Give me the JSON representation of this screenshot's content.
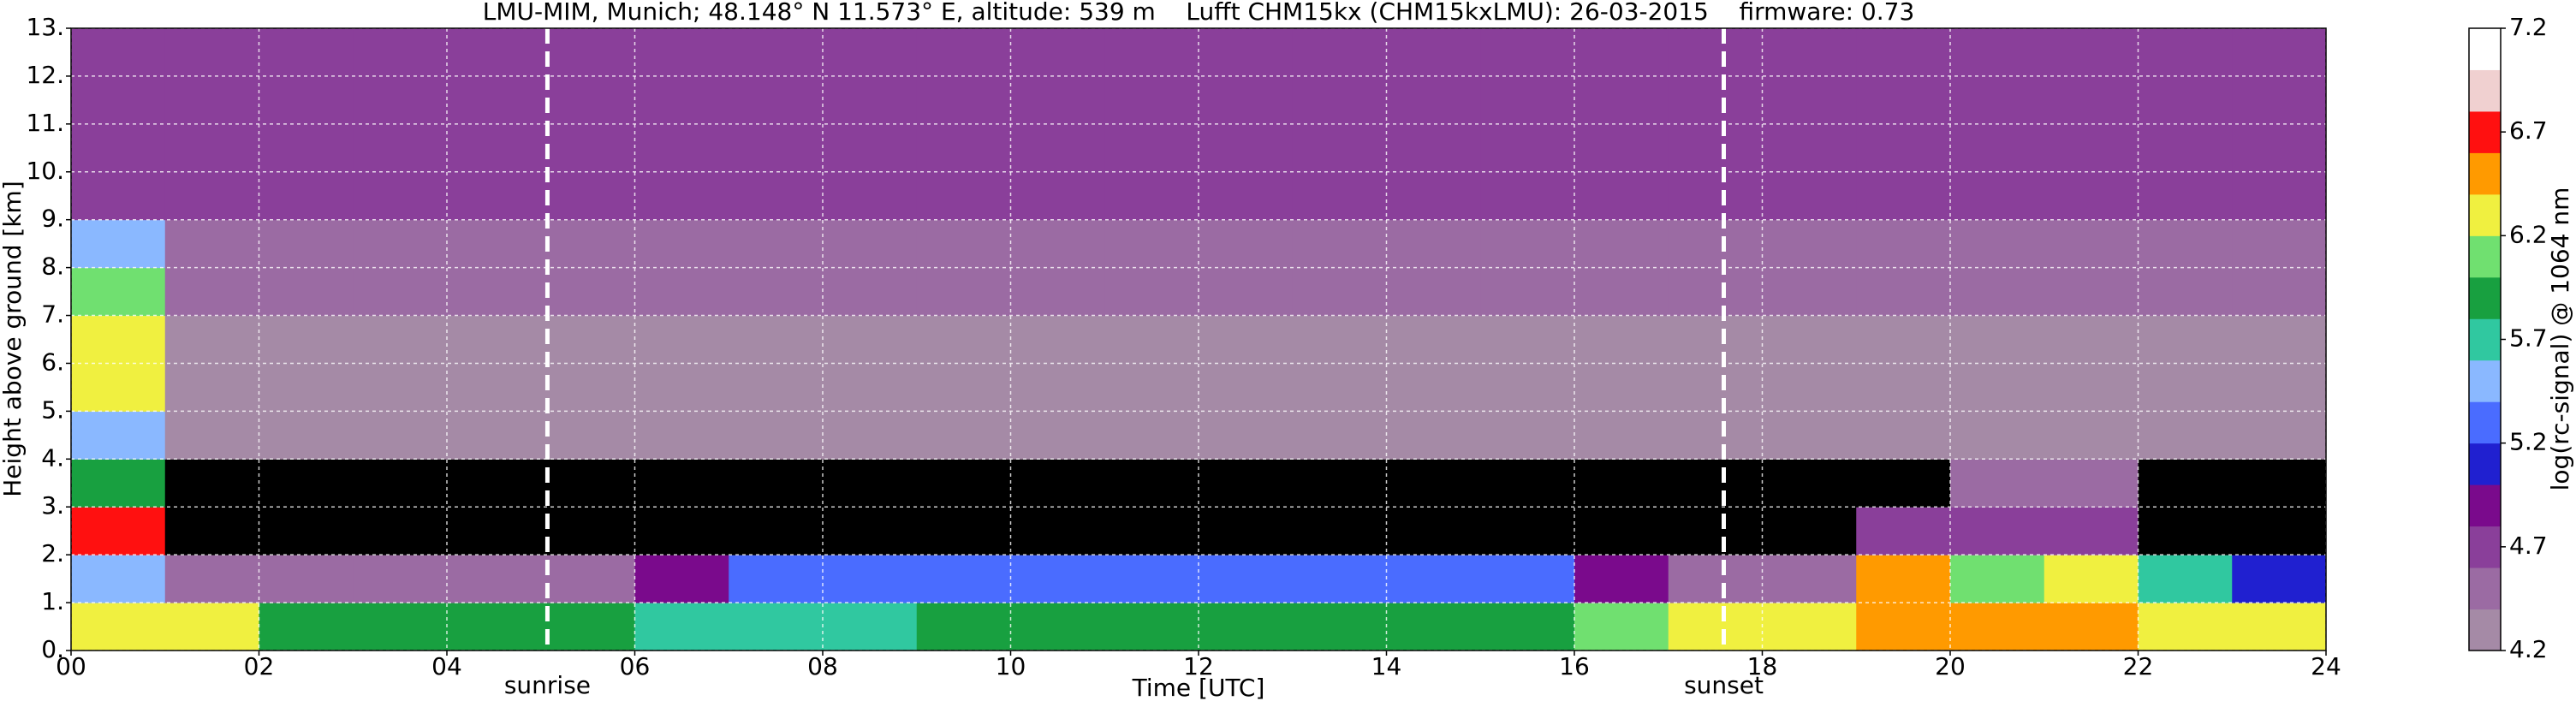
{
  "chart_data": {
    "type": "heatmap",
    "title": "LMU-MIM, Munich; 48.148° N 11.573° E, altitude: 539 m    Lufft CHM15kx (CHM15kxLMU): 26-03-2015    firmware: 0.73",
    "x_label": "Time [UTC]",
    "y_label": "Height above ground [km]",
    "colorbar_label": "log(rc-signal) @ 1064 nm",
    "xlim": [
      0,
      24
    ],
    "ylim": [
      0,
      13
    ],
    "zlim": [
      4.2,
      7.2
    ],
    "xticks": [
      {
        "value": 0,
        "label": "00"
      },
      {
        "value": 2,
        "label": "02"
      },
      {
        "value": 4,
        "label": "04"
      },
      {
        "value": 6,
        "label": "06"
      },
      {
        "value": 8,
        "label": "08"
      },
      {
        "value": 10,
        "label": "10"
      },
      {
        "value": 12,
        "label": "12"
      },
      {
        "value": 14,
        "label": "14"
      },
      {
        "value": 16,
        "label": "16"
      },
      {
        "value": 18,
        "label": "18"
      },
      {
        "value": 20,
        "label": "20"
      },
      {
        "value": 22,
        "label": "22"
      },
      {
        "value": 24,
        "label": "24"
      }
    ],
    "yticks": [
      {
        "value": 0,
        "label": "0."
      },
      {
        "value": 1,
        "label": "1."
      },
      {
        "value": 2,
        "label": "2."
      },
      {
        "value": 3,
        "label": "3."
      },
      {
        "value": 4,
        "label": "4."
      },
      {
        "value": 5,
        "label": "5."
      },
      {
        "value": 6,
        "label": "6."
      },
      {
        "value": 7,
        "label": "7."
      },
      {
        "value": 8,
        "label": "8."
      },
      {
        "value": 9,
        "label": "9."
      },
      {
        "value": 10,
        "label": "10."
      },
      {
        "value": 11,
        "label": "11."
      },
      {
        "value": 12,
        "label": "12."
      },
      {
        "value": 13,
        "label": "13."
      }
    ],
    "zticks": [
      4.2,
      4.7,
      5.2,
      5.7,
      6.2,
      6.7,
      7.2
    ],
    "grid": true,
    "colorscale": [
      "#a58aa6",
      "#9b6ba3",
      "#8a3f9a",
      "#7a0a8c",
      "#2020d0",
      "#4a6cff",
      "#8ab8ff",
      "#30c8a0",
      "#18a040",
      "#70e070",
      "#f0f040",
      "#ff9a00",
      "#ff1010",
      "#f0d0d0",
      "#ffffff"
    ],
    "under_color": "#000000",
    "annotations": [
      {
        "text": "sunrise",
        "x": 5.07
      },
      {
        "text": "sunset",
        "x": 17.59
      }
    ],
    "z": [
      [
        6.4,
        6.3,
        6.0,
        6.0,
        6.0,
        5.9,
        5.7,
        5.6,
        5.6,
        5.9,
        6.0,
        6.0,
        6.0,
        6.0,
        6.0,
        6.0,
        6.1,
        6.3,
        6.4,
        6.6,
        6.6,
        6.5,
        6.4,
        6.3
      ],
      [
        5.4,
        4.4,
        4.4,
        4.4,
        4.4,
        4.4,
        4.9,
        5.3,
        5.3,
        5.3,
        5.3,
        5.3,
        5.3,
        5.3,
        5.3,
        5.3,
        4.9,
        4.4,
        4.4,
        6.6,
        6.2,
        6.4,
        5.6,
        5.0
      ],
      [
        6.7,
        4.0,
        4.0,
        4.0,
        4.0,
        4.0,
        4.0,
        4.0,
        4.0,
        4.0,
        4.0,
        4.0,
        4.0,
        4.0,
        4.0,
        4.0,
        4.0,
        4.0,
        4.0,
        4.6,
        4.6,
        4.6,
        4.0,
        4.0
      ],
      [
        6.0,
        4.1,
        4.1,
        4.1,
        4.1,
        4.1,
        4.1,
        4.1,
        4.1,
        4.1,
        4.1,
        4.1,
        4.1,
        4.1,
        4.1,
        4.1,
        4.1,
        4.1,
        4.1,
        4.1,
        4.5,
        4.5,
        4.1,
        4.1
      ],
      [
        5.5,
        4.2,
        4.2,
        4.2,
        4.2,
        4.2,
        4.2,
        4.2,
        4.2,
        4.2,
        4.2,
        4.2,
        4.2,
        4.2,
        4.2,
        4.2,
        4.2,
        4.2,
        4.2,
        4.2,
        4.2,
        4.2,
        4.2,
        4.2
      ],
      [
        6.3,
        4.3,
        4.3,
        4.3,
        4.3,
        4.3,
        4.3,
        4.3,
        4.3,
        4.3,
        4.3,
        4.3,
        4.3,
        4.3,
        4.3,
        4.3,
        4.3,
        4.3,
        4.3,
        4.3,
        4.3,
        4.3,
        4.3,
        4.3
      ],
      [
        6.3,
        4.3,
        4.3,
        4.3,
        4.3,
        4.3,
        4.3,
        4.3,
        4.3,
        4.3,
        4.3,
        4.3,
        4.3,
        4.3,
        4.3,
        4.3,
        4.3,
        4.3,
        4.3,
        4.3,
        4.3,
        4.3,
        4.3,
        4.3
      ],
      [
        6.1,
        4.4,
        4.4,
        4.4,
        4.4,
        4.4,
        4.4,
        4.4,
        4.4,
        4.4,
        4.4,
        4.4,
        4.4,
        4.4,
        4.4,
        4.4,
        4.4,
        4.4,
        4.4,
        4.4,
        4.4,
        4.4,
        4.4,
        4.4
      ],
      [
        5.4,
        4.5,
        4.5,
        4.5,
        4.5,
        4.5,
        4.5,
        4.5,
        4.5,
        4.5,
        4.5,
        4.5,
        4.5,
        4.5,
        4.5,
        4.5,
        4.5,
        4.5,
        4.5,
        4.5,
        4.5,
        4.5,
        4.5,
        4.5
      ],
      [
        4.6,
        4.6,
        4.6,
        4.6,
        4.6,
        4.6,
        4.6,
        4.6,
        4.6,
        4.6,
        4.6,
        4.6,
        4.6,
        4.6,
        4.6,
        4.6,
        4.6,
        4.6,
        4.6,
        4.6,
        4.6,
        4.6,
        4.6,
        4.6
      ],
      [
        4.7,
        4.7,
        4.7,
        4.7,
        4.7,
        4.7,
        4.7,
        4.7,
        4.7,
        4.7,
        4.7,
        4.7,
        4.7,
        4.7,
        4.7,
        4.7,
        4.7,
        4.7,
        4.7,
        4.7,
        4.7,
        4.7,
        4.7,
        4.7
      ],
      [
        4.7,
        4.7,
        4.7,
        4.7,
        4.7,
        4.7,
        4.7,
        4.7,
        4.7,
        4.7,
        4.7,
        4.7,
        4.7,
        4.7,
        4.7,
        4.7,
        4.7,
        4.7,
        4.7,
        4.7,
        4.7,
        4.7,
        4.7,
        4.7
      ],
      [
        4.7,
        4.7,
        4.7,
        4.7,
        4.7,
        4.7,
        4.7,
        4.7,
        4.7,
        4.7,
        4.7,
        4.7,
        4.7,
        4.7,
        4.7,
        4.7,
        4.7,
        4.7,
        4.7,
        4.7,
        4.7,
        4.7,
        4.7,
        4.7
      ]
    ]
  }
}
